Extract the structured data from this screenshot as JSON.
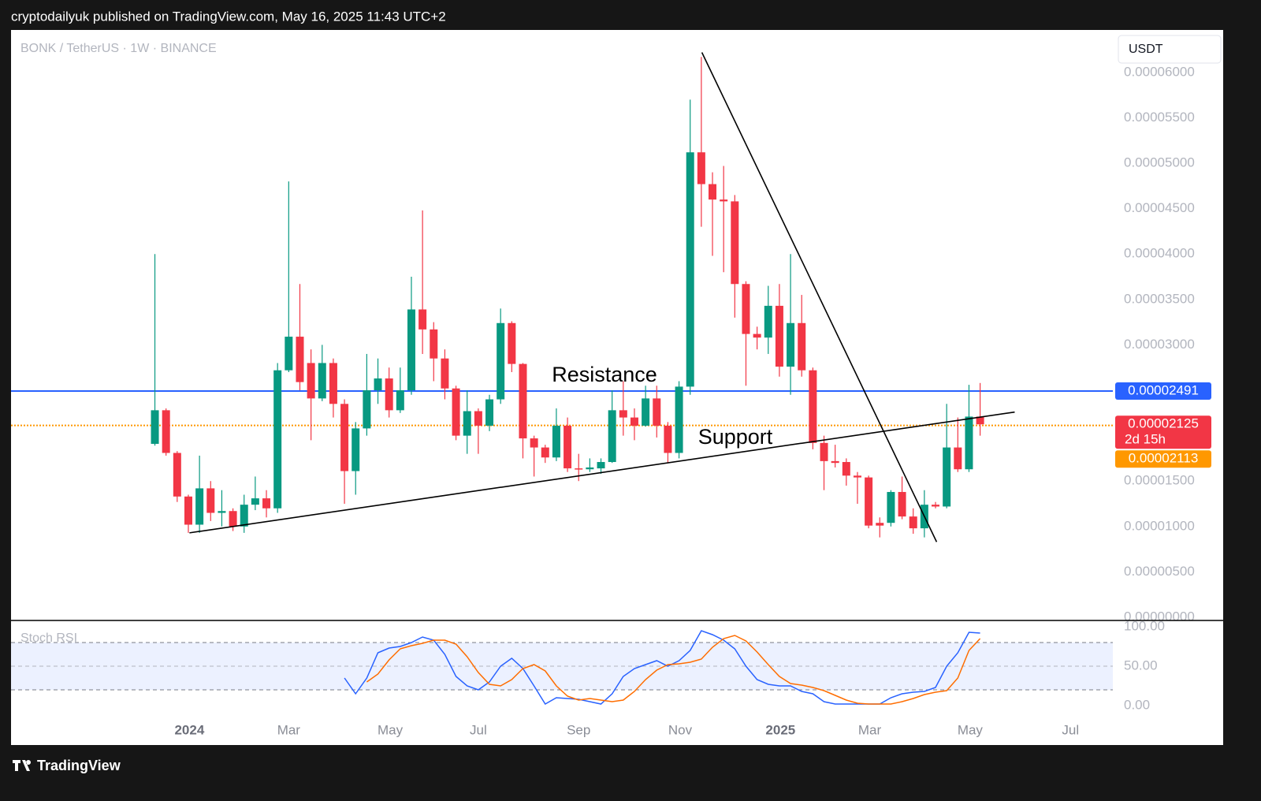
{
  "header": {
    "publisher": "cryptodailyuk published on TradingView.com, May 16, 2025 11:43 UTC+2"
  },
  "currency": "USDT",
  "footer": {
    "brand": "TradingView"
  },
  "chart_data": [
    {
      "type": "candlestick",
      "title": "BONK / TetherUS · 1W · BINANCE",
      "x": [
        0,
        1,
        2,
        3,
        4,
        5,
        6,
        7,
        8,
        9,
        10,
        11,
        12,
        13,
        14,
        15,
        16,
        17,
        18,
        19,
        20,
        21,
        22,
        23,
        24,
        25,
        26,
        27,
        28,
        29,
        30,
        31,
        32,
        33,
        34,
        35,
        36,
        37,
        38,
        39,
        40,
        41,
        42,
        43,
        44,
        45,
        46,
        47,
        48,
        49,
        50,
        51,
        52,
        53,
        54,
        55,
        56,
        57,
        58,
        59,
        60,
        61,
        62,
        63,
        64,
        65,
        66,
        67,
        68,
        69,
        70,
        71,
        72,
        73,
        74
      ],
      "open": [
        1.91e-05,
        2.28e-05,
        1.81e-05,
        1.33e-05,
        1.02e-05,
        1.42e-05,
        1.15e-05,
        1.17e-05,
        1e-05,
        1.24e-05,
        1.31e-05,
        1.2e-05,
        2.72e-05,
        3.09e-05,
        2.8e-05,
        2.41e-05,
        2.8e-05,
        2.35e-05,
        1.61e-05,
        2.08e-05,
        2.5e-05,
        2.63e-05,
        2.28e-05,
        2.5e-05,
        3.39e-05,
        3.17e-05,
        2.85e-05,
        2.52e-05,
        2e-05,
        2.27e-05,
        2.11e-05,
        2.4e-05,
        3.24e-05,
        2.79e-05,
        1.97e-05,
        1.87e-05,
        1.76e-05,
        2.11e-05,
        1.64e-05,
        1.63e-05,
        1.64e-05,
        1.71e-05,
        2.28e-05,
        2.2e-05,
        2.11e-05,
        2.41e-05,
        2.11e-05,
        1.81e-05,
        2.54e-05,
        5.12e-05,
        4.77e-05,
        4.6e-05,
        4.58e-05,
        3.67e-05,
        3.12e-05,
        3.08e-05,
        3.43e-05,
        2.76e-05,
        3.24e-05,
        2.72e-05,
        1.92e-05,
        1.72e-05,
        1.71e-05,
        1.56e-05,
        1.54e-05,
        1.04e-05,
        1.04e-05,
        1.38e-05,
        1.11e-05,
        9.8e-06,
        1.24e-05,
        1.22e-05,
        1.87e-05,
        1.63e-05,
        2.21e-05
      ],
      "high": [
        4e-05,
        2.3e-05,
        1.83e-05,
        1.35e-05,
        1.78e-05,
        1.5e-05,
        1.4e-05,
        1.2e-05,
        1.35e-05,
        1.55e-05,
        1.4e-05,
        2.8e-05,
        4.8e-05,
        3.67e-05,
        2.95e-05,
        3e-05,
        2.85e-05,
        2.4e-05,
        2.15e-05,
        2.9e-05,
        2.85e-05,
        2.75e-05,
        2.75e-05,
        3.75e-05,
        4.48e-05,
        3.25e-05,
        2.95e-05,
        2.55e-05,
        2.5e-05,
        2.3e-05,
        2.45e-05,
        3.4e-05,
        3.26e-05,
        2.8e-05,
        2e-05,
        1.9e-05,
        2.3e-05,
        2.2e-05,
        1.8e-05,
        1.75e-05,
        1.75e-05,
        2.5e-05,
        2.6e-05,
        2.3e-05,
        2.55e-05,
        2.55e-05,
        2.15e-05,
        2.6e-05,
        5.7e-05,
        6.17e-05,
        4.9e-05,
        4.97e-05,
        4.65e-05,
        3.7e-05,
        3.2e-05,
        3.65e-05,
        3.67e-05,
        4e-05,
        3.55e-05,
        2.75e-05,
        2e-05,
        1.9e-05,
        1.75e-05,
        1.6e-05,
        1.56e-05,
        1.1e-05,
        1.4e-05,
        1.55e-05,
        1.2e-05,
        1.4e-05,
        1.27e-05,
        2.35e-05,
        2.2e-05,
        2.56e-05,
        2.58e-05
      ],
      "low": [
        1.89e-05,
        1.78e-05,
        1.27e-05,
        9.3e-06,
        9.3e-06,
        1.06e-05,
        1e-05,
        9.5e-06,
        9.3e-06,
        1.18e-05,
        1.1e-05,
        1.15e-05,
        2.7e-05,
        2.5e-05,
        1.95e-05,
        2.38e-05,
        2.2e-05,
        1.25e-05,
        1.35e-05,
        2e-05,
        2.35e-05,
        2.2e-05,
        2.25e-05,
        2.45e-05,
        2.9e-05,
        2.6e-05,
        2.4e-05,
        1.95e-05,
        1.8e-05,
        1.8e-05,
        2.05e-05,
        2.35e-05,
        2.7e-05,
        1.75e-05,
        1.55e-05,
        1.7e-05,
        1.72e-05,
        1.6e-05,
        1.5e-05,
        1.6e-05,
        1.58e-05,
        1.7e-05,
        2e-05,
        1.95e-05,
        2.1e-05,
        1.98e-05,
        1.7e-05,
        1.75e-05,
        2.45e-05,
        4.3e-05,
        3.98e-05,
        3.8e-05,
        3.3e-05,
        2.55e-05,
        2.95e-05,
        2.9e-05,
        2.65e-05,
        2.45e-05,
        2.65e-05,
        1.85e-05,
        1.4e-05,
        1.65e-05,
        1.45e-05,
        1.25e-05,
        9.8e-06,
        8.8e-06,
        1e-05,
        1.08e-05,
        9.2e-06,
        8.8e-06,
        1.2e-05,
        1.2e-05,
        1.6e-05,
        1.6e-05,
        2e-05
      ],
      "close": [
        2.28e-05,
        1.81e-05,
        1.33e-05,
        1.02e-05,
        1.42e-05,
        1.15e-05,
        1.17e-05,
        1e-05,
        1.24e-05,
        1.31e-05,
        1.2e-05,
        2.72e-05,
        3.09e-05,
        2.59e-05,
        2.41e-05,
        2.8e-05,
        2.35e-05,
        1.61e-05,
        2.08e-05,
        2.5e-05,
        2.63e-05,
        2.28e-05,
        2.5e-05,
        3.39e-05,
        3.17e-05,
        2.85e-05,
        2.52e-05,
        2e-05,
        2.27e-05,
        2.11e-05,
        2.4e-05,
        3.24e-05,
        2.79e-05,
        1.97e-05,
        1.87e-05,
        1.76e-05,
        2.11e-05,
        1.64e-05,
        1.63e-05,
        1.65e-05,
        1.71e-05,
        2.28e-05,
        2.2e-05,
        2.11e-05,
        2.41e-05,
        2.11e-05,
        1.81e-05,
        2.54e-05,
        5.12e-05,
        4.77e-05,
        4.6e-05,
        4.58e-05,
        3.67e-05,
        3.12e-05,
        3.08e-05,
        3.43e-05,
        2.76e-05,
        3.24e-05,
        2.72e-05,
        1.92e-05,
        1.72e-05,
        1.7e-05,
        1.56e-05,
        1.54e-05,
        1.01e-05,
        1.01e-05,
        1.38e-05,
        1.11e-05,
        9.8e-06,
        1.24e-05,
        1.22e-05,
        1.87e-05,
        1.63e-05,
        2.21e-05,
        2.125e-05
      ],
      "up_color": "#089981",
      "down_color": "#f23645",
      "last_countdown": "2d 15h",
      "xlim": [
        -12.9,
        85.9
      ],
      "xticks": [
        {
          "value": 3.1,
          "label": "2024"
        },
        {
          "value": 12.0,
          "label": "Mar"
        },
        {
          "value": 21.1,
          "label": "May"
        },
        {
          "value": 29.0,
          "label": "Jul"
        },
        {
          "value": 38.0,
          "label": "Sep"
        },
        {
          "value": 47.1,
          "label": "Nov"
        },
        {
          "value": 56.1,
          "label": "2025"
        },
        {
          "value": 64.1,
          "label": "Mar"
        },
        {
          "value": 73.1,
          "label": "May"
        },
        {
          "value": 82.1,
          "label": "Jul"
        }
      ],
      "ylim": [
        0,
        6.45e-05
      ],
      "yticks": [
        {
          "value": 0,
          "label": "0.00000000"
        },
        {
          "value": 5e-06,
          "label": "0.00000500"
        },
        {
          "value": 1e-05,
          "label": "0.00001000"
        },
        {
          "value": 1.5e-05,
          "label": "0.00001500"
        },
        {
          "value": 2e-05,
          "label": "0.00002000"
        },
        {
          "value": 2.5e-05,
          "label": "0.00002500"
        },
        {
          "value": 3e-05,
          "label": "0.00003000"
        },
        {
          "value": 3.5e-05,
          "label": "0.00003500"
        },
        {
          "value": 4e-05,
          "label": "0.00004000"
        },
        {
          "value": 4.5e-05,
          "label": "0.00004500"
        },
        {
          "value": 5e-05,
          "label": "0.00005000"
        },
        {
          "value": 5.5e-05,
          "label": "0.00005500"
        },
        {
          "value": 6e-05,
          "label": "0.00006000"
        }
      ],
      "horizontal_lines": [
        {
          "value": 2.491e-05,
          "color": "#2962ff",
          "style": "solid"
        },
        {
          "value": 2.113e-05,
          "color": "#ff9800",
          "style": "dotted"
        }
      ],
      "trendlines": [
        {
          "x": [
            3.1,
            77.1
          ],
          "y": [
            9.3e-06,
            2.26e-05
          ]
        },
        {
          "x": [
            49.05,
            70.1
          ],
          "y": [
            6.22e-05,
            8.3e-06
          ]
        }
      ],
      "annotations": [
        "Resistance",
        "Support"
      ]
    },
    {
      "type": "line",
      "title": "Stoch RSI",
      "ylim": [
        -17,
        108
      ],
      "yticks": [
        {
          "value": 100,
          "label": "100.00"
        },
        {
          "value": 50,
          "label": "50.00"
        },
        {
          "value": 0,
          "label": "0.00"
        }
      ],
      "levels": [
        80,
        50,
        20
      ],
      "series": [
        {
          "color": "#2962ff",
          "values": [
            null,
            null,
            null,
            null,
            null,
            null,
            null,
            null,
            null,
            null,
            null,
            null,
            null,
            null,
            null,
            null,
            null,
            35,
            15,
            35,
            67,
            73,
            75,
            80,
            87,
            83,
            65,
            37,
            25,
            20,
            30,
            50,
            60,
            47,
            25,
            2,
            10,
            9,
            8,
            5,
            2,
            15,
            37,
            47,
            52,
            57,
            50,
            57,
            70,
            95,
            90,
            83,
            72,
            50,
            33,
            27,
            25,
            25,
            18,
            15,
            5,
            2,
            2,
            2,
            2,
            2,
            10,
            15,
            17,
            18,
            23,
            50,
            67,
            93,
            92
          ]
        },
        {
          "color": "#ff6d00",
          "values": [
            null,
            null,
            null,
            null,
            null,
            null,
            null,
            null,
            null,
            null,
            null,
            null,
            null,
            null,
            null,
            null,
            null,
            null,
            null,
            30,
            40,
            58,
            72,
            76,
            79,
            83,
            83,
            78,
            62,
            42,
            27,
            25,
            33,
            47,
            52,
            44,
            25,
            12,
            7,
            9,
            7,
            5,
            7,
            18,
            33,
            45,
            52,
            53,
            55,
            59,
            74,
            85,
            89,
            82,
            68,
            52,
            37,
            28,
            26,
            23,
            19,
            13,
            7,
            3,
            2,
            2,
            2,
            5,
            9,
            14,
            17,
            19,
            35,
            70,
            85
          ]
        }
      ]
    }
  ]
}
